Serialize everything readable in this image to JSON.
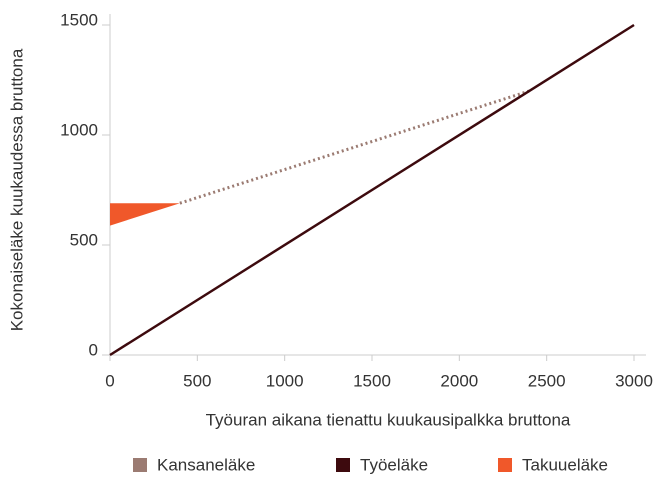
{
  "chart_data": {
    "type": "line",
    "x_label": "Työuran aikana tienattu kuukausipalkka bruttona",
    "y_label": "Kokonaiseläke kuukaudessa bruttona",
    "xlim": [
      0,
      3000
    ],
    "xticks": [
      0,
      500,
      1000,
      1500,
      2000,
      2500,
      3000
    ],
    "ylim": [
      0,
      1500
    ],
    "yticks": [
      0,
      500,
      1000,
      1500
    ],
    "legend": "bottom",
    "series": [
      {
        "name": "Kansaneläke",
        "color": "#9b7b72",
        "style": "dotted",
        "x": [
          400,
          2400
        ],
        "values": [
          690,
          1200
        ]
      },
      {
        "name": "Työeläke",
        "color": "#3d0a0e",
        "style": "solid",
        "x": [
          0,
          3000
        ],
        "values": [
          0,
          1500
        ]
      },
      {
        "name": "Takuueläke",
        "color": "#f0582a",
        "style": "band",
        "x": [
          0,
          400
        ],
        "values": [
          690,
          690
        ],
        "lower": [
          588,
          690
        ]
      }
    ]
  }
}
